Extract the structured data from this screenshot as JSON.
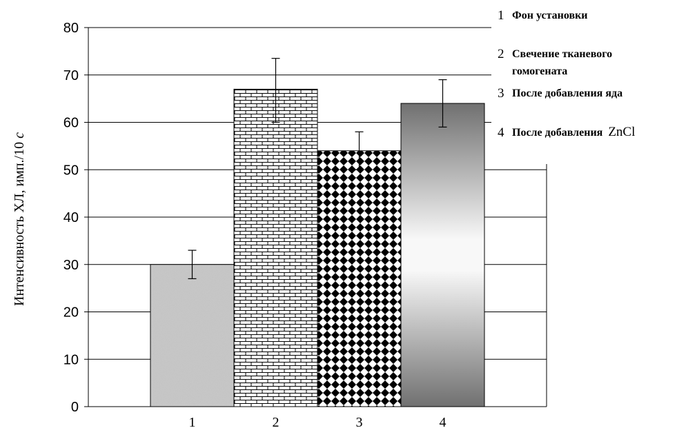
{
  "chart_data": {
    "type": "bar",
    "ylabel_main": "Интенсивность ХЛ, имп./10 ",
    "ylabel_unit": "с",
    "ylim": [
      0,
      80
    ],
    "yticks": [
      "0",
      "10",
      "20",
      "30",
      "40",
      "50",
      "60",
      "70",
      "80"
    ],
    "categories": [
      "1",
      "2",
      "3",
      "4"
    ],
    "values": [
      30,
      67,
      54,
      64
    ],
    "errors": [
      [
        27,
        33
      ],
      [
        60,
        73.5
      ],
      [
        50,
        58
      ],
      [
        59,
        69
      ]
    ],
    "grid": true,
    "legend": [
      {
        "num": "1",
        "lines": [
          "Фон установки"
        ]
      },
      {
        "num": "2",
        "lines": [
          "Свечение тканевого",
          "гомогената"
        ]
      },
      {
        "num": "3",
        "lines": [
          "После добавления яда"
        ]
      },
      {
        "num": "4",
        "lines": [
          "После добавления"
        ],
        "chem": "ZnCl"
      }
    ],
    "fills": [
      "speckled-gray",
      "brick",
      "diamond-checker",
      "gradient-gray"
    ]
  }
}
